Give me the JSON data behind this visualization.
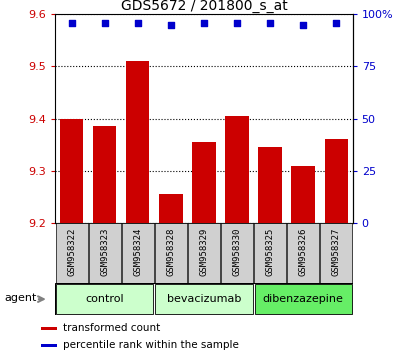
{
  "title": "GDS5672 / 201800_s_at",
  "samples": [
    "GSM958322",
    "GSM958323",
    "GSM958324",
    "GSM958328",
    "GSM958329",
    "GSM958330",
    "GSM958325",
    "GSM958326",
    "GSM958327"
  ],
  "bar_values": [
    9.4,
    9.385,
    9.51,
    9.255,
    9.355,
    9.405,
    9.345,
    9.31,
    9.36
  ],
  "percentile_values": [
    96,
    96,
    96,
    95,
    96,
    96,
    96,
    95,
    96
  ],
  "bar_color": "#cc0000",
  "dot_color": "#0000cc",
  "ymin": 9.2,
  "ymax": 9.6,
  "yticks": [
    9.2,
    9.3,
    9.4,
    9.5,
    9.6
  ],
  "y2min": 0,
  "y2max": 100,
  "y2ticks": [
    0,
    25,
    50,
    75,
    100
  ],
  "y2ticklabels": [
    "0",
    "25",
    "50",
    "75",
    "100%"
  ],
  "groups": [
    {
      "label": "control",
      "indices": [
        0,
        1,
        2
      ],
      "color": "#ccffcc"
    },
    {
      "label": "bevacizumab",
      "indices": [
        3,
        4,
        5
      ],
      "color": "#ccffcc"
    },
    {
      "label": "dibenzazepine",
      "indices": [
        6,
        7,
        8
      ],
      "color": "#66ee66"
    }
  ],
  "agent_label": "agent",
  "legend_bar_label": "transformed count",
  "legend_dot_label": "percentile rank within the sample",
  "left_tick_color": "#cc0000",
  "right_tick_color": "#0000cc",
  "bar_width": 0.7,
  "grid_color": "#000000",
  "sample_box_color": "#d0d0d0",
  "title_fontsize": 10
}
